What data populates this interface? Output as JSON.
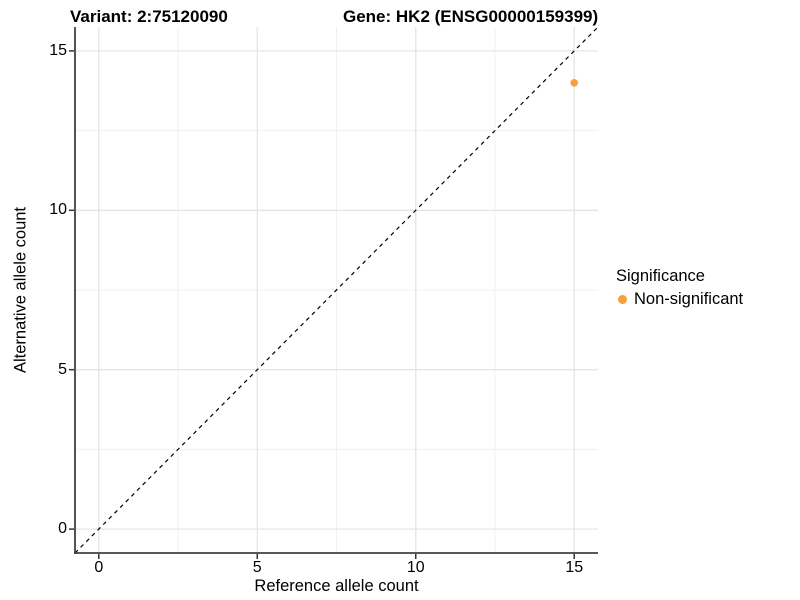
{
  "chart_data": {
    "type": "scatter",
    "titles": {
      "variant": "Variant: 2:75120090",
      "gene": "Gene: HK2 (ENSG00000159399)"
    },
    "xlabel": "Reference allele count",
    "ylabel": "Alternative allele count",
    "xlim": [
      -0.75,
      15.75
    ],
    "ylim": [
      -0.75,
      15.75
    ],
    "x_ticks": [
      0,
      5,
      10,
      15
    ],
    "y_ticks": [
      0,
      5,
      10,
      15
    ],
    "minor_ticks": [
      2.5,
      7.5,
      12.5
    ],
    "grid": "major+minor on white background",
    "points": [
      {
        "x": 15,
        "y": 14,
        "series": "Non-significant",
        "color": "#F9A03C",
        "radius": 3.8
      }
    ],
    "reference_line": {
      "type": "identity y=x",
      "from": [
        -0.75,
        -0.75
      ],
      "to": [
        15.75,
        15.75
      ],
      "style": "dashed",
      "color": "#000000"
    },
    "legend": {
      "title": "Significance",
      "position": "right",
      "entries": [
        {
          "label": "Non-significant",
          "color": "#F9A03C"
        }
      ]
    },
    "colors": {
      "background": "#FFFFFF",
      "axis_line": "#404040",
      "tick_mark": "#333333",
      "grid_major": "#E5E5E5",
      "grid_minor": "#F0F0F0",
      "text": "#000000"
    }
  }
}
